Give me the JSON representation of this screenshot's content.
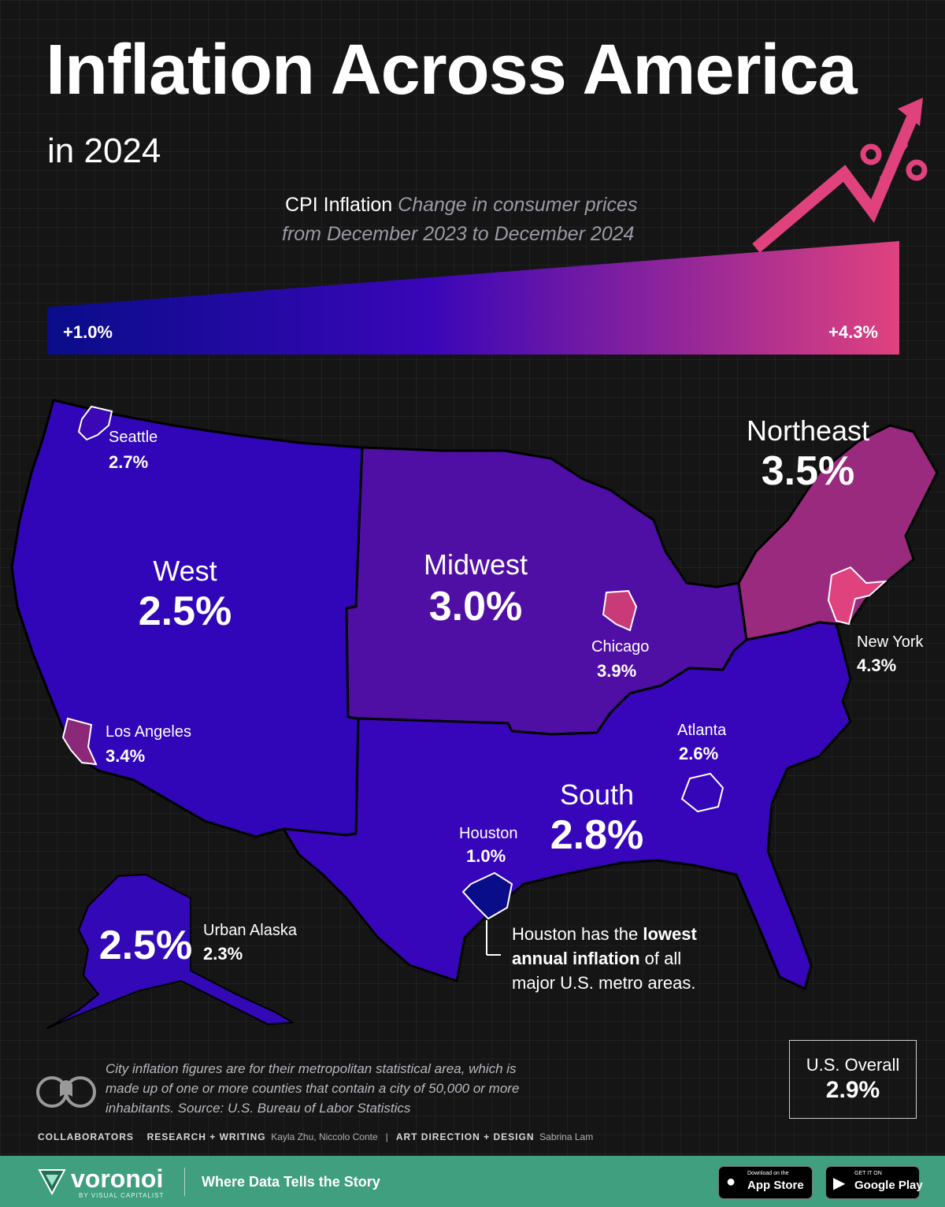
{
  "header": {
    "title": "Inflation Across America",
    "subtitle": "in 2024",
    "cpi_label": "CPI Inflation",
    "cpi_desc_1": "Change in consumer prices",
    "cpi_desc_2": "from December 2023 to December 2024"
  },
  "scale": {
    "min_label": "+1.0%",
    "max_label": "+4.3%",
    "min": 1.0,
    "max": 4.3,
    "color_low": "#0a0d8a",
    "color_high": "#e0427e"
  },
  "regions": [
    {
      "id": "west",
      "name": "West",
      "value": "2.5%",
      "color": "#3006b8"
    },
    {
      "id": "midwest",
      "name": "Midwest",
      "value": "3.0%",
      "color": "#4f0fa5"
    },
    {
      "id": "northeast",
      "name": "Northeast",
      "value": "3.5%",
      "color": "#9a2a7e"
    },
    {
      "id": "south",
      "name": "South",
      "value": "2.8%",
      "color": "#3806ba"
    },
    {
      "id": "alaska",
      "name": "",
      "value": "2.5%",
      "color": "#3308b6"
    }
  ],
  "cities": [
    {
      "id": "seattle",
      "name": "Seattle",
      "value": "2.7%",
      "color": "#3a08b5"
    },
    {
      "id": "los-angeles",
      "name": "Los Angeles",
      "value": "3.4%",
      "color": "#8c2878"
    },
    {
      "id": "chicago",
      "name": "Chicago",
      "value": "3.9%",
      "color": "#c93a78"
    },
    {
      "id": "new-york",
      "name": "New York",
      "value": "4.3%",
      "color": "#e0427e"
    },
    {
      "id": "atlanta",
      "name": "Atlanta",
      "value": "2.6%",
      "color": "#3506b8"
    },
    {
      "id": "houston",
      "name": "Houston",
      "value": "1.0%",
      "color": "#0a0d8a"
    },
    {
      "id": "urban-alaska",
      "name": "Urban Alaska",
      "value": "2.3%",
      "color": "#2a08b0"
    }
  ],
  "note": {
    "part1": "Houston has the ",
    "bold": "lowest annual inflation",
    "part2": " of all major U.S. metro areas."
  },
  "footnote": "City inflation figures are for their metropolitan statistical area, which is made up of one or more counties that contain a city of 50,000 or more inhabitants. Source: U.S. Bureau of Labor Statistics",
  "overall": {
    "label": "U.S. Overall",
    "value": "2.9%"
  },
  "credits": {
    "collaborators": "COLLABORATORS",
    "research_label": "RESEARCH + WRITING",
    "research_names": "Kayla Zhu, Niccolo Conte",
    "separator": "|",
    "art_label": "ART DIRECTION + DESIGN",
    "art_names": "Sabrina Lam"
  },
  "footer": {
    "brand": "voronoi",
    "brand_sub": "BY VISUAL CAPITALIST",
    "tagline": "Where Data Tells the Story",
    "app_store_small": "Download on the",
    "app_store": "App Store",
    "google_play_small": "GET IT ON",
    "google_play": "Google Play"
  }
}
